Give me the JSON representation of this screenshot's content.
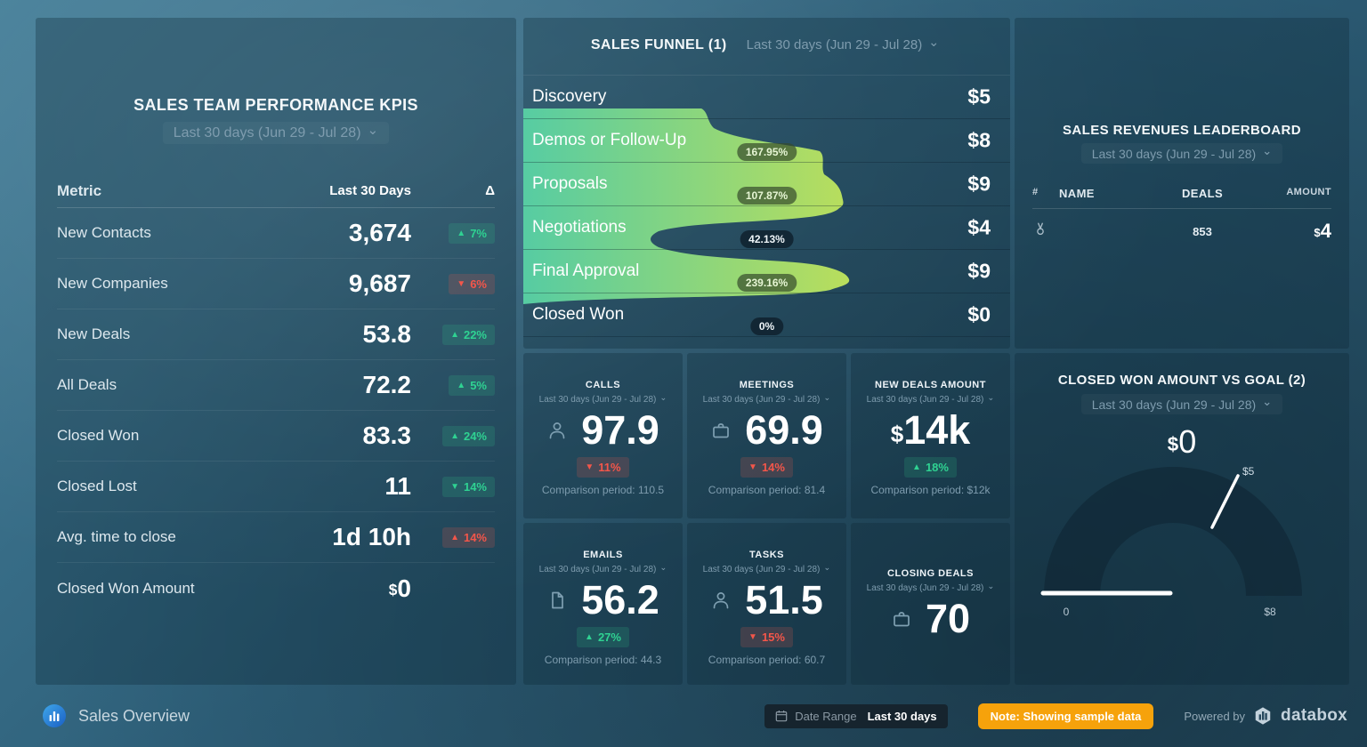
{
  "colors": {
    "green": "#2fd292",
    "red": "#f4564a",
    "orange": "#f6a20b"
  },
  "kpi_table": {
    "title": "SALES TEAM PERFORMANCE KPIS",
    "period": "Last 30 days (Jun 29 - Jul 28)",
    "columns": {
      "metric": "Metric",
      "value": "Last 30 Days",
      "delta": "Δ"
    },
    "rows": [
      {
        "metric": "New Contacts",
        "value": "3,674",
        "value_prefix": "",
        "delta": "7%",
        "direction": "up",
        "tone": "green"
      },
      {
        "metric": "New Companies",
        "value": "9,687",
        "value_prefix": "",
        "delta": "6%",
        "direction": "down",
        "tone": "red"
      },
      {
        "metric": "New Deals",
        "value": "53.8",
        "value_prefix": "",
        "delta": "22%",
        "direction": "up",
        "tone": "green"
      },
      {
        "metric": "All Deals",
        "value": "72.2",
        "value_prefix": "",
        "delta": "5%",
        "direction": "up",
        "tone": "green"
      },
      {
        "metric": "Closed Won",
        "value": "83.3",
        "value_prefix": "",
        "delta": "24%",
        "direction": "up",
        "tone": "green"
      },
      {
        "metric": "Closed Lost",
        "value": "11",
        "value_prefix": "",
        "delta": "14%",
        "direction": "down",
        "tone": "green"
      },
      {
        "metric": "Avg. time to close",
        "value": "1d 10h",
        "value_prefix": "",
        "delta": "14%",
        "direction": "up",
        "tone": "red"
      },
      {
        "metric": "Closed Won Amount",
        "value": "0",
        "value_prefix": "$",
        "delta": null,
        "direction": null,
        "tone": null
      }
    ]
  },
  "funnel": {
    "title": "SALES FUNNEL (1)",
    "period": "Last 30 days (Jun 29 - Jul 28)",
    "gradient": [
      "#58d1a5",
      "#bfe45c"
    ],
    "stages": [
      {
        "label": "Discovery",
        "value": "$5",
        "badge": null,
        "badge_tone": null
      },
      {
        "label": "Demos or Follow-Up",
        "value": "$8",
        "badge": "167.95%",
        "badge_tone": "olive"
      },
      {
        "label": "Proposals",
        "value": "$9",
        "badge": "107.87%",
        "badge_tone": "olive"
      },
      {
        "label": "Negotiations",
        "value": "$4",
        "badge": "42.13%",
        "badge_tone": "navy"
      },
      {
        "label": "Final Approval",
        "value": "$9",
        "badge": "239.16%",
        "badge_tone": "olive"
      },
      {
        "label": "Closed Won",
        "value": "$0",
        "badge": "0%",
        "badge_tone": "navy"
      }
    ]
  },
  "leaderboard": {
    "title": "SALES REVENUES LEADERBOARD",
    "period": "Last 30 days (Jun 29 - Jul 28)",
    "columns": {
      "rank": "#",
      "name": "NAME",
      "deals": "DEALS",
      "amount": "AMOUNT"
    },
    "rows": [
      {
        "rank_icon": "medal-icon",
        "name": "",
        "deals": "853",
        "amount": "4",
        "amount_prefix": "$"
      }
    ]
  },
  "cards": [
    {
      "title": "CALLS",
      "period": "Last 30 days (Jun 29 - Jul 28)",
      "icon": "person-icon",
      "value": "97.9",
      "prefix": "",
      "delta": "11%",
      "direction": "down",
      "tone": "red",
      "comparison": "Comparison period: 110.5",
      "centered": false
    },
    {
      "title": "MEETINGS",
      "period": "Last 30 days (Jun 29 - Jul 28)",
      "icon": "briefcase-icon",
      "value": "69.9",
      "prefix": "",
      "delta": "14%",
      "direction": "down",
      "tone": "red",
      "comparison": "Comparison period: 81.4",
      "centered": false
    },
    {
      "title": "NEW DEALS AMOUNT",
      "period": "Last 30 days (Jun 29 - Jul 28)",
      "icon": null,
      "value": "14k",
      "prefix": "$",
      "delta": "18%",
      "direction": "up",
      "tone": "green",
      "comparison": "Comparison period: $12k",
      "centered": false
    },
    {
      "title": "EMAILS",
      "period": "Last 30 days (Jun 29 - Jul 28)",
      "icon": "document-icon",
      "value": "56.2",
      "prefix": "",
      "delta": "27%",
      "direction": "up",
      "tone": "green",
      "comparison": "Comparison period: 44.3",
      "centered": false
    },
    {
      "title": "TASKS",
      "period": "Last 30 days (Jun 29 - Jul 28)",
      "icon": "person-icon",
      "value": "51.5",
      "prefix": "",
      "delta": "15%",
      "direction": "down",
      "tone": "red",
      "comparison": "Comparison period: 60.7",
      "centered": false
    },
    {
      "title": "CLOSING DEALS",
      "period": "Last 30 days (Jun 29 - Jul 28)",
      "icon": "briefcase-icon",
      "value": "70",
      "prefix": "",
      "delta": null,
      "direction": null,
      "tone": null,
      "comparison": null,
      "centered": true
    }
  ],
  "gauge": {
    "title": "CLOSED WON AMOUNT VS GOAL (2)",
    "period": "Last 30 days (Jun 29 - Jul 28)",
    "value": "0",
    "value_prefix": "$",
    "min_label": "0",
    "goal_label": "$5",
    "max_label": "$8"
  },
  "footer": {
    "dashboard_name": "Sales Overview",
    "date_range_label": "Date Range",
    "date_range_value": "Last 30 days",
    "note": "Note: Showing sample data",
    "powered_by": "Powered by",
    "brand": "databox"
  }
}
